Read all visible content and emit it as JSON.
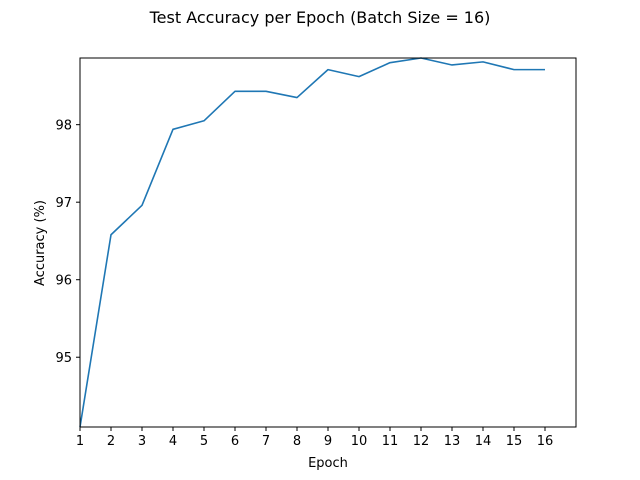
{
  "chart_data": {
    "type": "line",
    "title": "Test Accuracy per Epoch (Batch Size = 16)",
    "xlabel": "Epoch",
    "ylabel": "Accuracy (%)",
    "x": [
      1,
      2,
      3,
      4,
      5,
      6,
      7,
      8,
      9,
      10,
      11,
      12,
      13,
      14,
      15,
      16
    ],
    "series": [
      {
        "color": "#1f77b4",
        "values": [
          94.1,
          96.58,
          96.96,
          97.94,
          98.05,
          98.43,
          98.43,
          98.35,
          98.71,
          98.62,
          98.8,
          98.86,
          98.77,
          98.81,
          98.71,
          98.71
        ]
      }
    ],
    "xlim": [
      1,
      17
    ],
    "ylim": [
      94.1,
      98.86
    ],
    "xticks": [
      "1",
      "2",
      "3",
      "4",
      "5",
      "6",
      "7",
      "8",
      "9",
      "10",
      "11",
      "12",
      "13",
      "14",
      "15",
      "16"
    ],
    "yticks": [
      "95",
      "96",
      "97",
      "98"
    ],
    "grid": false,
    "legend": "none"
  }
}
